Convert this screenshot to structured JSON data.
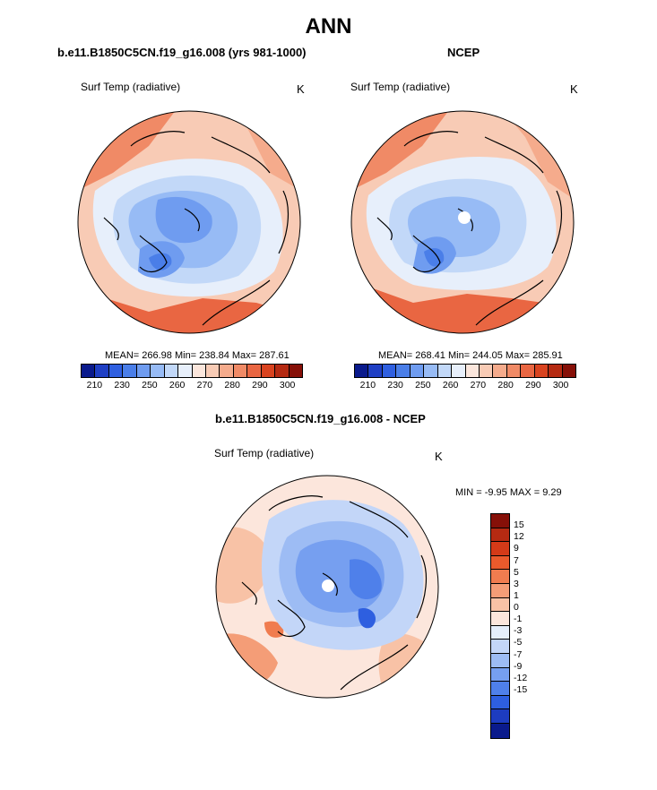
{
  "main_title": "ANN",
  "panel_left": {
    "title": "b.e11.B1850C5CN.f19_g16.008 (yrs 981-1000)",
    "variable": "Surf Temp (radiative)",
    "unit": "K",
    "stats": "MEAN= 266.98  Min= 238.84  Max= 287.61"
  },
  "panel_right": {
    "title": "NCEP",
    "variable": "Surf Temp (radiative)",
    "unit": "K",
    "stats": "MEAN= 268.41  Min= 244.05  Max= 285.91"
  },
  "panel_diff": {
    "title": "b.e11.B1850C5CN.f19_g16.008 - NCEP",
    "variable": "Surf Temp (radiative)",
    "unit": "K",
    "stats": "MIN =  -9.95 MAX =   9.29"
  },
  "colorbar_abs": {
    "colors": [
      "#0a1a8c",
      "#1f3fc4",
      "#2f5fe0",
      "#4a7ee8",
      "#6f9cf0",
      "#97bbf5",
      "#c2d8f8",
      "#e7effb",
      "#fbe6dc",
      "#f8cbb5",
      "#f5ab8c",
      "#f08a66",
      "#e96642",
      "#d9431f",
      "#b52a12",
      "#861008"
    ],
    "ticks": [
      "210",
      "230",
      "250",
      "260",
      "270",
      "280",
      "290",
      "300"
    ]
  },
  "colorbar_diff": {
    "colors": [
      "#861008",
      "#b52a12",
      "#d43a18",
      "#ea5a2c",
      "#f07c4f",
      "#f49d77",
      "#f8c2a6",
      "#fce6dc",
      "#e5eefb",
      "#c3d6f8",
      "#9dbcf4",
      "#769ff0",
      "#4f80ea",
      "#2e5fe0",
      "#1d3cc0",
      "#0a1a8c"
    ],
    "ticks": [
      "15",
      "12",
      "9",
      "7",
      "5",
      "3",
      "1",
      "0",
      "-1",
      "-3",
      "-5",
      "-7",
      "-9",
      "-12",
      "-15"
    ]
  }
}
